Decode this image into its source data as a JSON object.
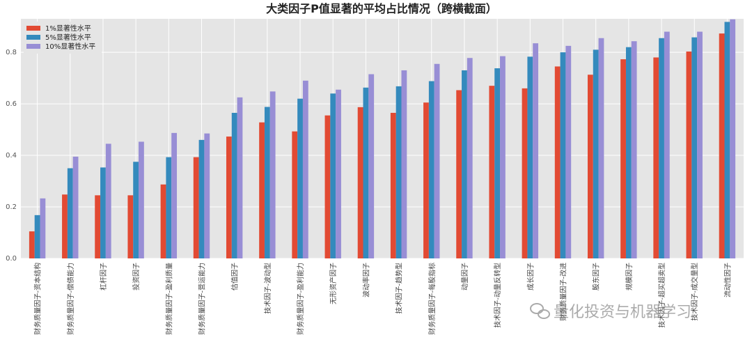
{
  "chart_data": {
    "type": "bar",
    "title": "大类因子P值显著的平均占比情况（跨横截面）",
    "xlabel": "",
    "ylabel": "",
    "ylim": [
      0,
      0.93
    ],
    "yticks": [
      "0.0",
      "0.2",
      "0.4",
      "0.6",
      "0.8"
    ],
    "grid": true,
    "legend_position": "top-left",
    "categories": [
      "财务质量因子-资本结构",
      "财务质量因子-偿债能力",
      "杠杆因子",
      "投资因子",
      "财务质量因子-盈利质量",
      "财务质量因子-营运能力",
      "估值因子",
      "技术因子-波动型",
      "财务质量因子-盈利能力",
      "无形资产因子",
      "波动率因子",
      "技术因子-趋势型",
      "财务质量因子-每股指标",
      "动量因子",
      "技术因子-动量反转型",
      "成长因子",
      "财务质量因子-改进",
      "股东因子",
      "规模因子",
      "技术因子-超买超卖型",
      "技术因子-成交量型",
      "流动性因子"
    ],
    "series": [
      {
        "name": "1%显著性水平",
        "color": "#e24a33",
        "values": [
          0.105,
          0.248,
          0.245,
          0.245,
          0.287,
          0.393,
          0.473,
          0.528,
          0.493,
          0.555,
          0.587,
          0.565,
          0.605,
          0.653,
          0.67,
          0.66,
          0.745,
          0.713,
          0.773,
          0.78,
          0.803,
          0.873
        ]
      },
      {
        "name": "5%显著性水平",
        "color": "#348abd",
        "values": [
          0.168,
          0.35,
          0.353,
          0.375,
          0.393,
          0.46,
          0.565,
          0.588,
          0.62,
          0.64,
          0.663,
          0.668,
          0.688,
          0.73,
          0.738,
          0.783,
          0.8,
          0.81,
          0.82,
          0.855,
          0.858,
          0.918
        ]
      },
      {
        "name": "10%显著性水平",
        "color": "#988ed5",
        "values": [
          0.233,
          0.395,
          0.445,
          0.453,
          0.487,
          0.485,
          0.625,
          0.648,
          0.69,
          0.655,
          0.715,
          0.73,
          0.755,
          0.778,
          0.785,
          0.835,
          0.825,
          0.855,
          0.843,
          0.88,
          0.88,
          0.928
        ]
      }
    ]
  },
  "watermark": {
    "text": "量化投资与机器学习",
    "icon": "wechat-icon"
  }
}
